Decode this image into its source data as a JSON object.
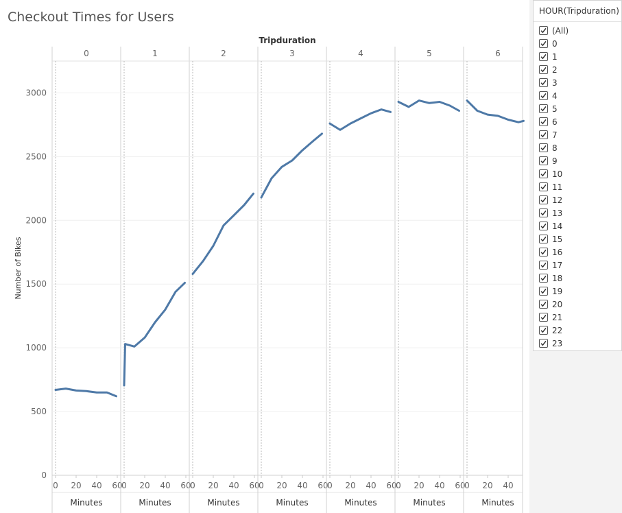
{
  "title": "Checkout Times for Users",
  "chart_data": {
    "type": "line",
    "title": "Checkout Times for Users",
    "column_header": "Tripduration",
    "panel_labels": [
      "0",
      "1",
      "2",
      "3",
      "4",
      "5",
      "6"
    ],
    "xlabel": "Minutes",
    "ylabel": "Number of Bikes",
    "y_ticks": [
      "0",
      "500",
      "1000",
      "1500",
      "2000",
      "2500",
      "3000"
    ],
    "x_ticks": [
      "0",
      "20",
      "40",
      "60"
    ],
    "x_ticks_last": [
      "0",
      "20",
      "40"
    ],
    "ylim": [
      0,
      3250
    ],
    "xlim": [
      0,
      60
    ],
    "line_color": "#4e79a7",
    "series": [
      {
        "panel": "0",
        "x": [
          0,
          10,
          20,
          30,
          40,
          50,
          59
        ],
        "values": [
          670,
          680,
          665,
          660,
          650,
          650,
          620
        ]
      },
      {
        "panel": "1",
        "x": [
          0,
          1,
          10,
          20,
          30,
          40,
          50,
          59
        ],
        "values": [
          705,
          1030,
          1010,
          1080,
          1200,
          1300,
          1440,
          1510
        ]
      },
      {
        "panel": "2",
        "x": [
          0,
          10,
          20,
          30,
          40,
          50,
          59
        ],
        "values": [
          1580,
          1680,
          1800,
          1960,
          2040,
          2120,
          2210
        ]
      },
      {
        "panel": "3",
        "x": [
          0,
          10,
          20,
          30,
          40,
          50,
          59
        ],
        "values": [
          2180,
          2330,
          2420,
          2470,
          2550,
          2620,
          2680
        ]
      },
      {
        "panel": "4",
        "x": [
          0,
          10,
          20,
          30,
          40,
          50,
          59
        ],
        "values": [
          2760,
          2710,
          2760,
          2800,
          2840,
          2870,
          2850
        ]
      },
      {
        "panel": "5",
        "x": [
          0,
          10,
          20,
          30,
          40,
          50,
          59
        ],
        "values": [
          2930,
          2890,
          2940,
          2920,
          2930,
          2900,
          2860
        ]
      },
      {
        "panel": "6",
        "x": [
          0,
          10,
          20,
          30,
          40,
          50,
          55
        ],
        "values": [
          2940,
          2860,
          2830,
          2820,
          2790,
          2770,
          2780
        ]
      }
    ]
  },
  "filter": {
    "title": "HOUR(Tripduration)",
    "items": [
      "(All)",
      "0",
      "1",
      "2",
      "3",
      "4",
      "5",
      "6",
      "7",
      "8",
      "9",
      "10",
      "11",
      "12",
      "13",
      "14",
      "15",
      "16",
      "17",
      "18",
      "19",
      "20",
      "21",
      "22",
      "23"
    ]
  }
}
